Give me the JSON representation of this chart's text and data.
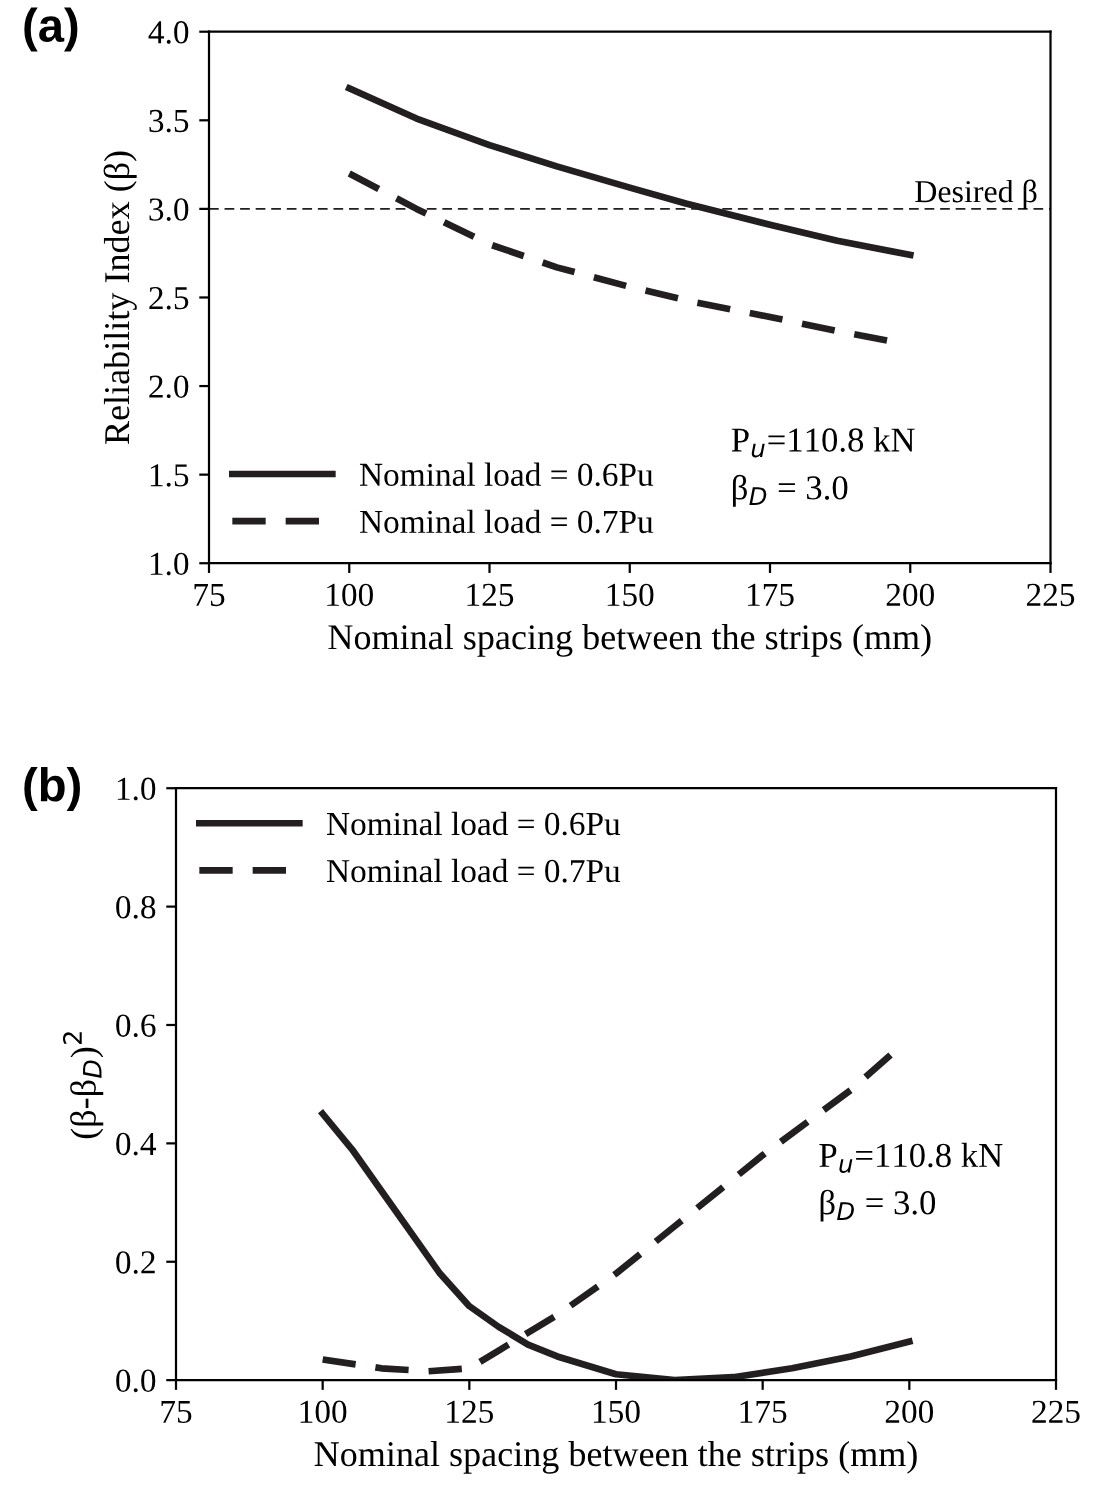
{
  "chart_data": [
    {
      "type": "line",
      "title": "(a)",
      "xlabel": "Nominal spacing between the strips (mm)",
      "ylabel": "Reliability Index (β)",
      "xlim": [
        75,
        225
      ],
      "xticks": [
        75,
        100,
        125,
        150,
        175,
        200,
        225
      ],
      "ylim": [
        1.0,
        4.0
      ],
      "yticks": [
        {
          "value": 1.0,
          "label": "1.0"
        },
        {
          "value": 1.5,
          "label": "1.5"
        },
        {
          "value": 2.0,
          "label": "2.0"
        },
        {
          "value": 2.5,
          "label": "2.5"
        },
        {
          "value": 3.0,
          "label": "3.0"
        },
        {
          "value": 3.5,
          "label": "3.5"
        },
        {
          "value": 4.0,
          "label": "4.0"
        }
      ],
      "grid": false,
      "legend": "bottom left",
      "series": [
        {
          "name": "Nominal load = 0.6Pu",
          "color": "#231f20",
          "line_style": "solid",
          "x": [
            100,
            112,
            125,
            137,
            150,
            160,
            175,
            187,
            200
          ],
          "values": [
            3.68,
            3.51,
            3.36,
            3.24,
            3.12,
            3.03,
            2.91,
            2.82,
            2.74
          ]
        },
        {
          "name": "Nominal load = 0.7Pu",
          "color": "#231f20",
          "line_style": "dashed",
          "x": [
            100,
            112,
            125,
            137,
            150,
            162,
            175,
            187,
            197
          ],
          "values": [
            3.2,
            3.0,
            2.8,
            2.67,
            2.56,
            2.47,
            2.39,
            2.31,
            2.25
          ]
        }
      ],
      "ref_lines": [
        {
          "axis": "y",
          "value": 3.0,
          "label": "Desired β",
          "color": "#231f20",
          "line_style": "dashed"
        }
      ],
      "annotations": [
        "P$_{u}$=110.8 kN",
        "β$_{D}$ = 3.0"
      ]
    },
    {
      "type": "line",
      "title": "(b)",
      "xlabel": "Nominal spacing between the strips (mm)",
      "ylabel": "(β-β$_{D}$)$^{2}$",
      "xlim": [
        75,
        225
      ],
      "xticks": [
        75,
        100,
        125,
        150,
        175,
        200,
        225
      ],
      "ylim": [
        0.0,
        1.0
      ],
      "yticks": [
        {
          "value": 0.0,
          "label": "0.0"
        },
        {
          "value": 0.2,
          "label": "0.2"
        },
        {
          "value": 0.4,
          "label": "0.4"
        },
        {
          "value": 0.6,
          "label": "0.6"
        },
        {
          "value": 0.8,
          "label": "0.8"
        },
        {
          "value": 1.0,
          "label": "1.0"
        }
      ],
      "grid": false,
      "legend": "top left",
      "series": [
        {
          "name": "Nominal load = 0.6Pu",
          "color": "#231f20",
          "line_style": "solid",
          "x": [
            100,
            105,
            110,
            115,
            120,
            125,
            130,
            135,
            140,
            150,
            160,
            170,
            180,
            190,
            200
          ],
          "values": [
            0.45,
            0.39,
            0.32,
            0.25,
            0.18,
            0.125,
            0.09,
            0.06,
            0.04,
            0.01,
            0.0,
            0.005,
            0.02,
            0.04,
            0.065
          ]
        },
        {
          "name": "Nominal load = 0.7Pu",
          "color": "#231f20",
          "line_style": "dashed",
          "x": [
            100,
            110,
            118,
            125,
            130,
            140,
            150,
            160,
            175,
            190,
            198
          ],
          "values": [
            0.035,
            0.02,
            0.015,
            0.02,
            0.05,
            0.11,
            0.18,
            0.26,
            0.38,
            0.49,
            0.56
          ]
        }
      ],
      "annotations": [
        "P$_{u}$=110.8 kN",
        "β$_{D}$ = 3.0"
      ]
    }
  ]
}
